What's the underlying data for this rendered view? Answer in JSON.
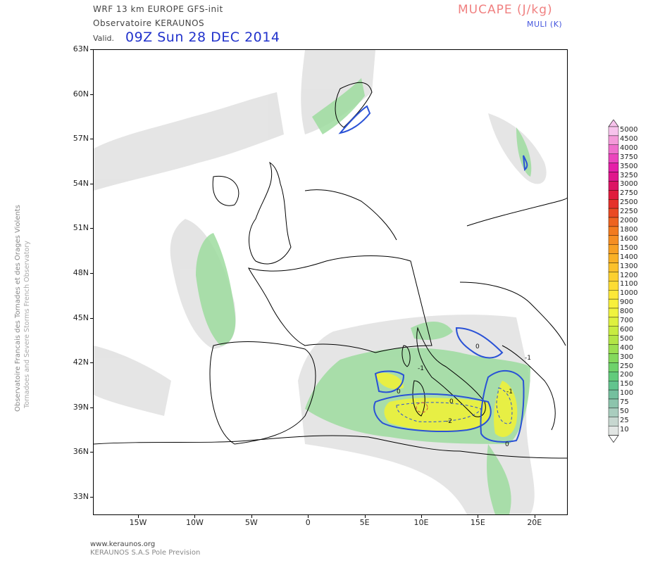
{
  "header": {
    "model_line": "WRF 13 km EUROPE  GFS-init",
    "observatory": "Observatoire KERAUNOS",
    "valid_label": "Valid.",
    "valid_date": "09Z Sun 28 DEC 2014"
  },
  "titles": {
    "mucape": "MUCAPE (J/kg)",
    "muli": "MULI (K)"
  },
  "side_text": {
    "french": "Observatoire Francais des Tornades et des Orages Violents",
    "english": "Tornadoes and Severe Storms French Observatory"
  },
  "axes": {
    "lat_labels": [
      "63N",
      "60N",
      "57N",
      "54N",
      "51N",
      "48N",
      "45N",
      "42N",
      "39N",
      "36N",
      "33N"
    ],
    "lon_labels": [
      "15W",
      "10W",
      "5W",
      "0",
      "5E",
      "10E",
      "15E",
      "20E"
    ]
  },
  "colorbar": {
    "levels": [
      "5000",
      "4500",
      "4000",
      "3750",
      "3500",
      "3250",
      "3000",
      "2750",
      "2500",
      "2250",
      "2000",
      "1800",
      "1600",
      "1500",
      "1400",
      "1300",
      "1200",
      "1100",
      "1000",
      "900",
      "800",
      "700",
      "600",
      "500",
      "400",
      "300",
      "250",
      "200",
      "150",
      "100",
      "75",
      "50",
      "25",
      "10"
    ],
    "colors": [
      "#f7c3ec",
      "#f49ad9",
      "#ef6fcc",
      "#eb44bd",
      "#e51fa8",
      "#e0168c",
      "#dc1463",
      "#e01c3c",
      "#e5312a",
      "#ea4a22",
      "#ee6420",
      "#f27b1f",
      "#f58e22",
      "#f7a023",
      "#f9b126",
      "#fbc12b",
      "#fcd02f",
      "#fddc33",
      "#fde838",
      "#f8f03b",
      "#f0f33e",
      "#def13f",
      "#c8ec41",
      "#b3e546",
      "#9bdf50",
      "#84d95c",
      "#6fd26b",
      "#62cb7c",
      "#62c48e",
      "#74bf9e",
      "#8cc4ac",
      "#a9cdbe",
      "#c7d7d0",
      "#e2e6e4"
    ]
  },
  "map_labels": {
    "muli_contour_values": [
      "0",
      "-1",
      "0",
      "-1",
      "-2",
      "0",
      "0",
      "-1"
    ]
  },
  "footer": {
    "url": "www.keraunos.org",
    "company": "KERAUNOS S.A.S Pole Prevision"
  }
}
